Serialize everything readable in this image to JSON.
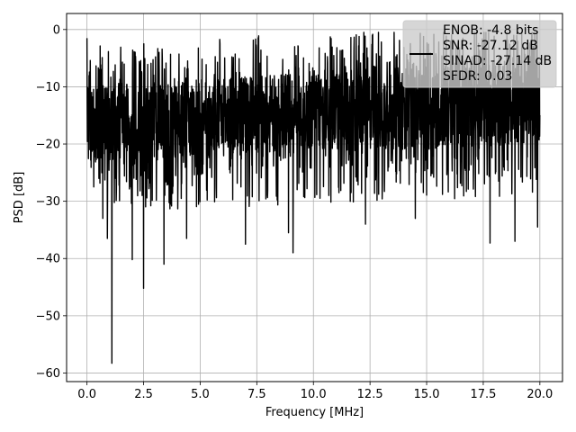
{
  "chart_data": {
    "type": "line",
    "title": "",
    "xlabel": "Frequency [MHz]",
    "ylabel": "PSD [dB]",
    "xlim": [
      -0.9,
      21.0
    ],
    "ylim": [
      -61.5,
      2.8
    ],
    "xticks": [
      0.0,
      2.5,
      5.0,
      7.5,
      10.0,
      12.5,
      15.0,
      17.5,
      20.0
    ],
    "xtick_labels": [
      "0.0",
      "2.5",
      "5.0",
      "7.5",
      "10.0",
      "12.5",
      "15.0",
      "17.5",
      "20.0"
    ],
    "yticks": [
      0,
      -10,
      -20,
      -30,
      -40,
      -50,
      -60
    ],
    "ytick_labels": [
      "0",
      "−10",
      "−20",
      "−30",
      "−40",
      "−50",
      "−60"
    ],
    "grid": true,
    "legend_position": "top-right",
    "legend_lines": [
      "ENOB: -4.8 bits",
      "SNR: -27.12 dB",
      "SINAD: -27.14 dB",
      "SFDR: 0.03"
    ],
    "series": [
      {
        "color": "#000000",
        "x_range": [
          0.0,
          20.0
        ],
        "band_start": [
          -10,
          -23
        ],
        "band_end": [
          -5,
          -20
        ],
        "start_value": -1.5,
        "dips": [
          {
            "x": 0.3,
            "y": -27.5
          },
          {
            "x": 0.7,
            "y": -33.0
          },
          {
            "x": 0.9,
            "y": -36.5
          },
          {
            "x": 1.1,
            "y": -58.3
          },
          {
            "x": 1.3,
            "y": -28.0
          },
          {
            "x": 2.0,
            "y": -40.2
          },
          {
            "x": 2.5,
            "y": -45.2
          },
          {
            "x": 3.4,
            "y": -41.0
          },
          {
            "x": 4.4,
            "y": -36.5
          },
          {
            "x": 7.0,
            "y": -37.5
          },
          {
            "x": 8.9,
            "y": -35.5
          },
          {
            "x": 9.1,
            "y": -39.0
          },
          {
            "x": 12.3,
            "y": -34.0
          },
          {
            "x": 14.5,
            "y": -33.0
          },
          {
            "x": 17.8,
            "y": -37.3
          },
          {
            "x": 18.9,
            "y": -37.0
          },
          {
            "x": 19.9,
            "y": -34.5
          }
        ]
      }
    ]
  }
}
